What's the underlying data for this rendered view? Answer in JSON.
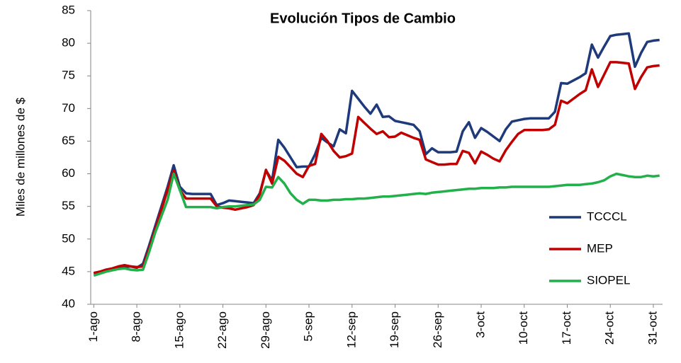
{
  "chart_data": {
    "type": "line",
    "title": "Evolución Tipos de Cambio",
    "y_label": "Miles de millones de $",
    "categories": [
      "1-ago",
      null,
      null,
      null,
      null,
      null,
      null,
      "8-ago",
      null,
      null,
      null,
      null,
      null,
      null,
      "15-ago",
      null,
      null,
      null,
      null,
      null,
      null,
      "22-ago",
      null,
      null,
      null,
      null,
      null,
      null,
      "29-ago",
      null,
      null,
      null,
      null,
      null,
      null,
      "5-sep",
      null,
      null,
      null,
      null,
      null,
      null,
      "12-sep",
      null,
      null,
      null,
      null,
      null,
      null,
      "19-sep",
      null,
      null,
      null,
      null,
      null,
      null,
      "26-sep",
      null,
      null,
      null,
      null,
      null,
      null,
      "3-oct",
      null,
      null,
      null,
      null,
      null,
      null,
      "10-oct",
      null,
      null,
      null,
      null,
      null,
      null,
      "17-oct",
      null,
      null,
      null,
      null,
      null,
      null,
      "24-oct",
      null,
      null,
      null,
      null,
      null,
      null,
      "31-oct",
      null
    ],
    "series": [
      {
        "name": "TCCCL",
        "color": "#1f3a7a",
        "values": [
          44.7,
          44.9,
          45.1,
          45.3,
          45.5,
          45.7,
          45.8,
          45.6,
          46.2,
          49,
          52,
          55,
          58,
          61.3,
          58,
          57,
          56.9,
          56.9,
          56.9,
          56.9,
          55.2,
          55.5,
          55.9,
          55.8,
          55.7,
          55.6,
          55.5,
          57,
          60.5,
          59,
          65.2,
          64,
          62.5,
          61,
          61.1,
          61.1,
          63,
          65.5,
          64.8,
          64.2,
          66.8,
          66.2,
          72.7,
          71.5,
          70.3,
          69.2,
          70.6,
          68.7,
          68.8,
          68.1,
          67.9,
          67.7,
          67.5,
          66.5,
          63,
          63.9,
          63.3,
          63.3,
          63.3,
          63.4,
          66.5,
          67.9,
          65.5,
          67,
          66.4,
          65.7,
          65,
          66.8,
          68,
          68.2,
          68.4,
          68.5,
          68.5,
          68.5,
          68.5,
          69.5,
          73.9,
          73.8,
          74.3,
          74.8,
          75.4,
          79.8,
          77.8,
          79.5,
          81.1,
          81.3,
          81.4,
          81.5,
          76.4,
          78.5,
          80.2,
          80.4,
          80.5
        ]
      },
      {
        "name": "MEP",
        "color": "#c00000",
        "values": [
          44.8,
          45.0,
          45.3,
          45.5,
          45.8,
          46.0,
          45.8,
          45.7,
          45.8,
          48.5,
          51.5,
          54.5,
          57.5,
          60.5,
          57.5,
          56.2,
          56.2,
          56.2,
          56.2,
          56.2,
          55.0,
          54.8,
          54.7,
          54.5,
          54.7,
          54.9,
          55.2,
          56.8,
          60.6,
          58.5,
          62.6,
          62,
          61,
          60,
          59.5,
          61.2,
          61.5,
          66.1,
          65,
          63.5,
          62.5,
          62.7,
          63.1,
          68.7,
          67.8,
          66.9,
          66.1,
          66.5,
          65.6,
          65.7,
          66.3,
          65.9,
          65.5,
          65.2,
          62.2,
          61.8,
          61.4,
          61.4,
          61.5,
          61.5,
          63.5,
          63.2,
          61.6,
          63.4,
          62.9,
          62.3,
          61.9,
          63.6,
          64.9,
          66.1,
          66.7,
          66.7,
          66.7,
          66.7,
          66.8,
          67.5,
          71.2,
          70.8,
          71.5,
          72.2,
          72.8,
          76,
          73.3,
          75.2,
          77.1,
          77.1,
          77,
          76.9,
          73,
          74.8,
          76.3,
          76.5,
          76.6
        ]
      },
      {
        "name": "SIOPEL",
        "color": "#22b04b",
        "values": [
          44.4,
          44.7,
          45,
          45.2,
          45.4,
          45.5,
          45.3,
          45.2,
          45.3,
          48,
          51,
          53.5,
          56,
          60,
          57.5,
          54.9,
          54.9,
          54.9,
          54.9,
          54.9,
          54.7,
          54.9,
          55,
          55,
          55.1,
          55.2,
          55.3,
          56,
          58,
          57.9,
          59.5,
          58.5,
          57,
          56,
          55.4,
          56,
          56,
          55.9,
          55.9,
          56,
          56,
          56.1,
          56.1,
          56.2,
          56.2,
          56.3,
          56.4,
          56.5,
          56.5,
          56.6,
          56.7,
          56.8,
          56.9,
          57,
          56.9,
          57.1,
          57.2,
          57.3,
          57.4,
          57.5,
          57.6,
          57.7,
          57.7,
          57.8,
          57.8,
          57.8,
          57.9,
          57.9,
          58,
          58,
          58,
          58,
          58,
          58,
          58,
          58.1,
          58.2,
          58.3,
          58.3,
          58.3,
          58.4,
          58.5,
          58.7,
          59,
          59.6,
          60,
          59.8,
          59.6,
          59.5,
          59.5,
          59.7,
          59.6,
          59.7
        ]
      }
    ],
    "ylim": [
      40,
      85
    ],
    "yticks": [
      40,
      45,
      50,
      55,
      60,
      65,
      70,
      75,
      80,
      85
    ],
    "grid": false,
    "legend": "right"
  }
}
